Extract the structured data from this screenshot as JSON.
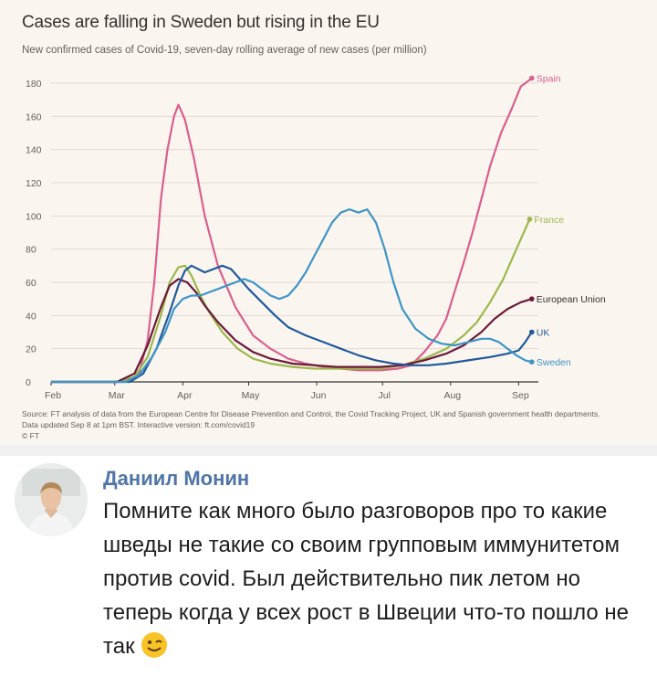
{
  "chart_data": {
    "type": "line",
    "title": "Cases are falling in Sweden but rising in the EU",
    "subtitle": "New confirmed cases of Covid-19, seven-day rolling average of new cases (per million)",
    "x_ticks": [
      "Feb",
      "Mar",
      "Apr",
      "May",
      "Jun",
      "Jul",
      "Aug",
      "Sep"
    ],
    "y_ticks": [
      0,
      20,
      40,
      60,
      80,
      100,
      120,
      140,
      160,
      180
    ],
    "ylim": [
      0,
      180
    ],
    "x_unit": "days since Feb 1",
    "xlim": [
      0,
      222
    ],
    "grid": "horizontal",
    "legend_placement": "inline labels at line ends",
    "series": [
      {
        "name": "Spain",
        "color": "#d95f8f",
        "points": [
          [
            0,
            0
          ],
          [
            28,
            0
          ],
          [
            35,
            0.5
          ],
          [
            40,
            5
          ],
          [
            44,
            25
          ],
          [
            47,
            60
          ],
          [
            50,
            110
          ],
          [
            53,
            140
          ],
          [
            56,
            160
          ],
          [
            58,
            167
          ],
          [
            61,
            158
          ],
          [
            65,
            135
          ],
          [
            70,
            100
          ],
          [
            76,
            70
          ],
          [
            84,
            45
          ],
          [
            92,
            28
          ],
          [
            100,
            20
          ],
          [
            108,
            14
          ],
          [
            116,
            11
          ],
          [
            124,
            9
          ],
          [
            132,
            8
          ],
          [
            140,
            7
          ],
          [
            150,
            7
          ],
          [
            158,
            8
          ],
          [
            164,
            10
          ],
          [
            170,
            18
          ],
          [
            176,
            28
          ],
          [
            180,
            38
          ],
          [
            184,
            55
          ],
          [
            188,
            72
          ],
          [
            192,
            90
          ],
          [
            196,
            110
          ],
          [
            200,
            130
          ],
          [
            205,
            150
          ],
          [
            210,
            165
          ],
          [
            214,
            178
          ],
          [
            219,
            183
          ]
        ]
      },
      {
        "name": "France",
        "color": "#9cb84a",
        "points": [
          [
            0,
            0
          ],
          [
            30,
            0
          ],
          [
            38,
            3
          ],
          [
            44,
            15
          ],
          [
            50,
            40
          ],
          [
            54,
            60
          ],
          [
            58,
            69
          ],
          [
            61,
            70
          ],
          [
            64,
            64
          ],
          [
            68,
            52
          ],
          [
            72,
            42
          ],
          [
            78,
            30
          ],
          [
            85,
            20
          ],
          [
            92,
            14
          ],
          [
            100,
            11
          ],
          [
            110,
            9
          ],
          [
            120,
            8
          ],
          [
            130,
            8
          ],
          [
            140,
            8
          ],
          [
            150,
            8
          ],
          [
            160,
            10
          ],
          [
            170,
            14
          ],
          [
            180,
            20
          ],
          [
            188,
            28
          ],
          [
            194,
            36
          ],
          [
            200,
            48
          ],
          [
            206,
            62
          ],
          [
            212,
            80
          ],
          [
            218,
            98
          ]
        ]
      },
      {
        "name": "European Union",
        "color": "#6b1a3a",
        "points": [
          [
            0,
            0
          ],
          [
            30,
            0
          ],
          [
            38,
            5
          ],
          [
            44,
            22
          ],
          [
            50,
            45
          ],
          [
            54,
            58
          ],
          [
            58,
            62
          ],
          [
            62,
            60
          ],
          [
            66,
            54
          ],
          [
            70,
            46
          ],
          [
            76,
            36
          ],
          [
            84,
            25
          ],
          [
            92,
            18
          ],
          [
            100,
            14
          ],
          [
            110,
            11
          ],
          [
            120,
            10
          ],
          [
            130,
            9
          ],
          [
            140,
            9
          ],
          [
            150,
            9
          ],
          [
            160,
            10
          ],
          [
            170,
            13
          ],
          [
            180,
            17
          ],
          [
            188,
            22
          ],
          [
            196,
            30
          ],
          [
            202,
            38
          ],
          [
            208,
            44
          ],
          [
            214,
            48
          ],
          [
            219,
            50
          ]
        ]
      },
      {
        "name": "UK",
        "color": "#1f5a9a",
        "points": [
          [
            0,
            0
          ],
          [
            36,
            0
          ],
          [
            42,
            5
          ],
          [
            48,
            20
          ],
          [
            54,
            42
          ],
          [
            58,
            58
          ],
          [
            61,
            67
          ],
          [
            64,
            70
          ],
          [
            67,
            68
          ],
          [
            70,
            66
          ],
          [
            74,
            68
          ],
          [
            78,
            70
          ],
          [
            82,
            68
          ],
          [
            86,
            62
          ],
          [
            90,
            56
          ],
          [
            96,
            48
          ],
          [
            102,
            40
          ],
          [
            108,
            33
          ],
          [
            116,
            28
          ],
          [
            124,
            24
          ],
          [
            132,
            20
          ],
          [
            140,
            16
          ],
          [
            148,
            13
          ],
          [
            156,
            11
          ],
          [
            164,
            10
          ],
          [
            172,
            10
          ],
          [
            180,
            11
          ],
          [
            190,
            13
          ],
          [
            200,
            15
          ],
          [
            208,
            17
          ],
          [
            213,
            19
          ],
          [
            216,
            24
          ],
          [
            219,
            30
          ]
        ]
      },
      {
        "name": "Sweden",
        "color": "#3d95c6",
        "points": [
          [
            0,
            0
          ],
          [
            34,
            0
          ],
          [
            40,
            4
          ],
          [
            46,
            15
          ],
          [
            52,
            30
          ],
          [
            56,
            44
          ],
          [
            60,
            50
          ],
          [
            64,
            52
          ],
          [
            68,
            52
          ],
          [
            72,
            54
          ],
          [
            76,
            56
          ],
          [
            80,
            58
          ],
          [
            84,
            60
          ],
          [
            88,
            62
          ],
          [
            92,
            60
          ],
          [
            96,
            56
          ],
          [
            100,
            52
          ],
          [
            104,
            50
          ],
          [
            108,
            52
          ],
          [
            112,
            58
          ],
          [
            116,
            66
          ],
          [
            120,
            76
          ],
          [
            124,
            86
          ],
          [
            128,
            96
          ],
          [
            132,
            102
          ],
          [
            136,
            104
          ],
          [
            140,
            102
          ],
          [
            144,
            104
          ],
          [
            148,
            96
          ],
          [
            152,
            80
          ],
          [
            156,
            60
          ],
          [
            160,
            44
          ],
          [
            166,
            32
          ],
          [
            172,
            26
          ],
          [
            178,
            23
          ],
          [
            184,
            22
          ],
          [
            190,
            24
          ],
          [
            196,
            26
          ],
          [
            200,
            26
          ],
          [
            204,
            24
          ],
          [
            208,
            20
          ],
          [
            212,
            16
          ],
          [
            216,
            13
          ],
          [
            219,
            12
          ]
        ]
      }
    ]
  },
  "source": "Source: FT analysis of data from the European Centre for Disease Prevention and Control, the Covid Tracking Project, UK and Spanish government health departments. Data updated Sep 8 at 1pm BST. Interactive version: ft.com/covid19",
  "credit": "© FT",
  "post": {
    "author": "Даниил Монин",
    "text": "Помните как много было разговоров про то какие шведы не такие со своим групповым иммунитетом против covid. Был действительно пик летом но теперь когда у всех рост в Швеции что-то пошло не так",
    "emoji": "wink-emoji"
  }
}
